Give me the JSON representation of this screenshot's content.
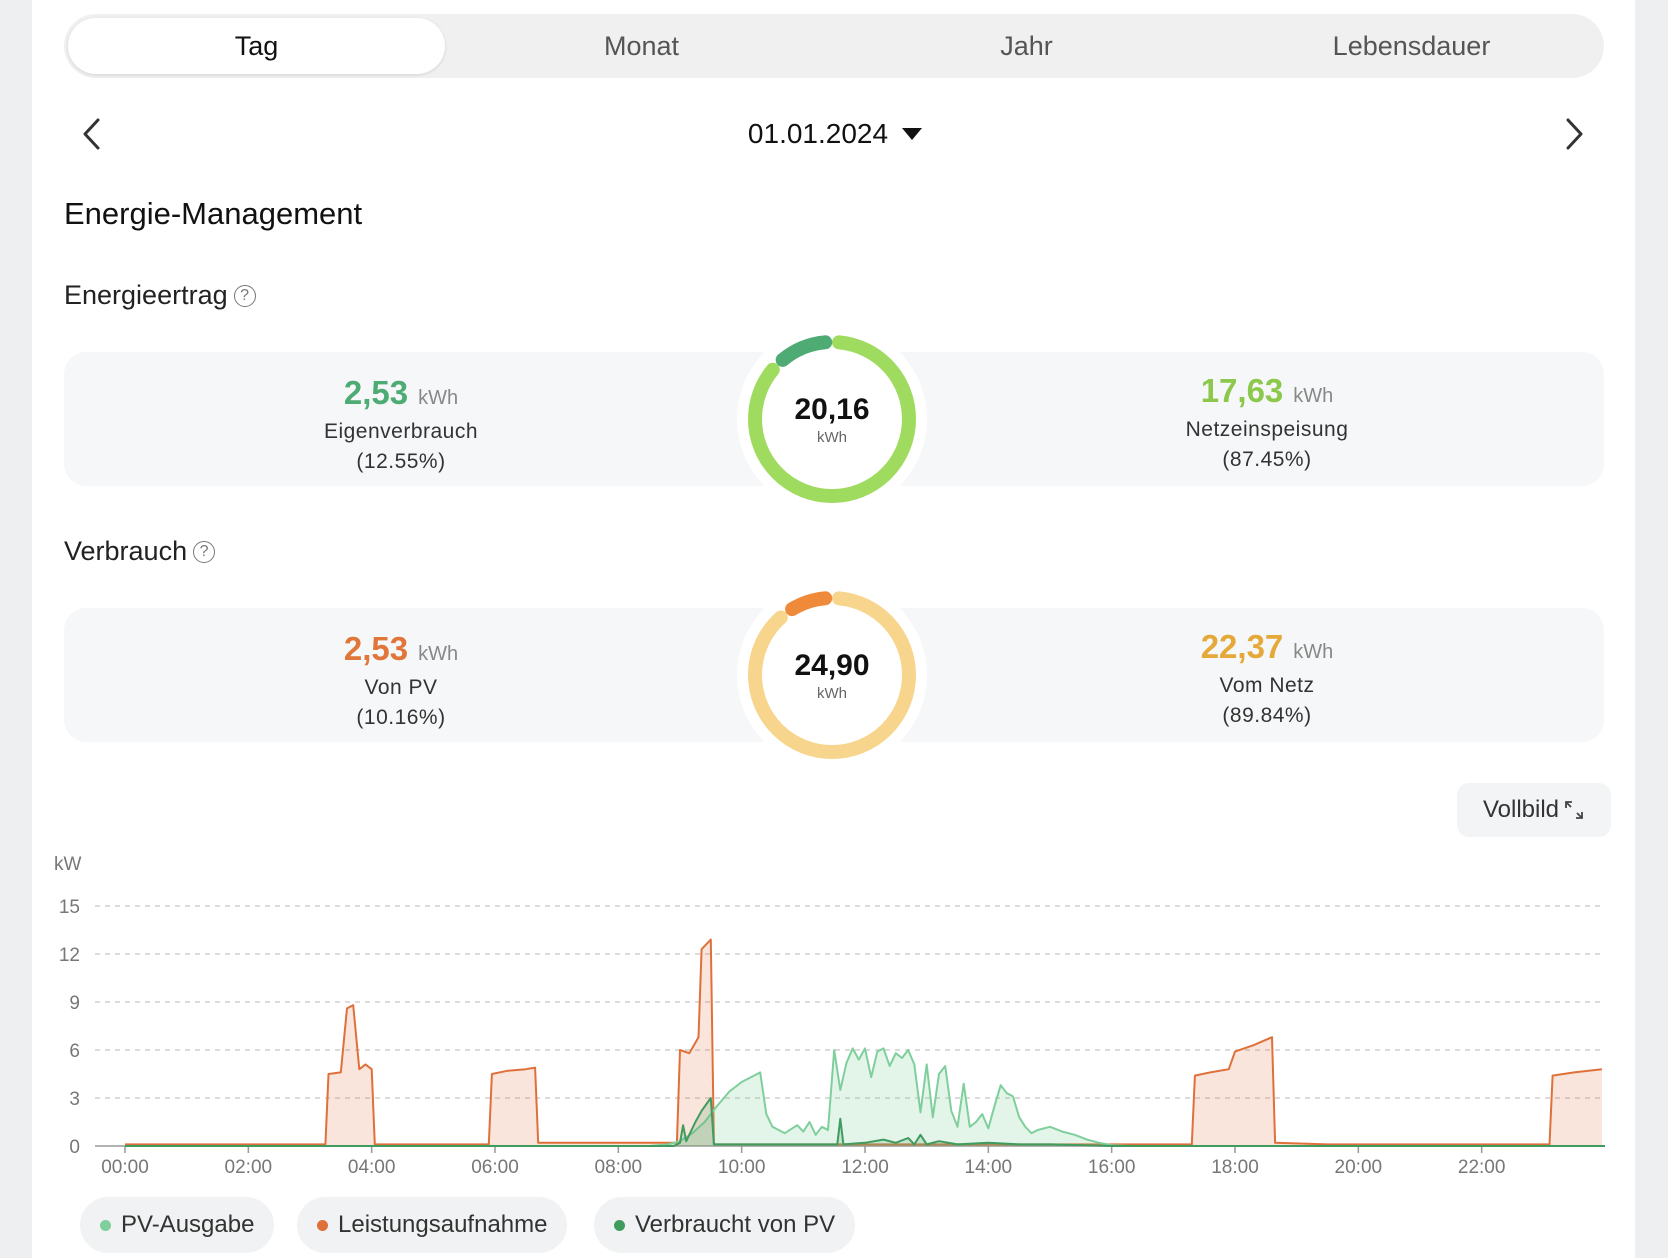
{
  "tabs": [
    {
      "label": "Tag",
      "active": true
    },
    {
      "label": "Monat",
      "active": false
    },
    {
      "label": "Jahr",
      "active": false
    },
    {
      "label": "Lebensdauer",
      "active": false
    }
  ],
  "date": "01.01.2024",
  "title": "Energie-Management",
  "energieertrag": {
    "heading": "Energieertrag",
    "left": {
      "value": "2,53",
      "unit": "kWh",
      "label": "Eigenverbrauch",
      "percent": "(12.55%)"
    },
    "total": {
      "value": "20,16",
      "unit": "kWh"
    },
    "right": {
      "value": "17,63",
      "unit": "kWh",
      "label": "Netzeinspeisung",
      "percent": "(87.45%)"
    },
    "colors": {
      "primary": "#4eab73",
      "secondary": "#9edb5e"
    },
    "share_primary": 0.1255
  },
  "verbrauch": {
    "heading": "Verbrauch",
    "left": {
      "value": "2,53",
      "unit": "kWh",
      "label": "Von PV",
      "percent": "(10.16%)"
    },
    "total": {
      "value": "24,90",
      "unit": "kWh"
    },
    "right": {
      "value": "22,37",
      "unit": "kWh",
      "label": "Vom Netz",
      "percent": "(89.84%)"
    },
    "colors": {
      "primary": "#ee8a3a",
      "secondary": "#f7d58d"
    },
    "share_primary": 0.1016
  },
  "fullscreen_label": "Vollbild",
  "help_icon": "?",
  "chart_data": {
    "type": "area",
    "ylabel": "kW",
    "ylim": [
      0,
      15
    ],
    "yticks": [
      0,
      3,
      6,
      9,
      12,
      15
    ],
    "xticks": [
      "00:00",
      "02:00",
      "04:00",
      "06:00",
      "08:00",
      "10:00",
      "12:00",
      "14:00",
      "16:00",
      "18:00",
      "20:00",
      "22:00"
    ],
    "grid": true,
    "legend_position": "bottom",
    "series": [
      {
        "name": "PV-Ausgabe",
        "color": "#7fcf9c",
        "points": [
          [
            0,
            0
          ],
          [
            8.5,
            0
          ],
          [
            8.8,
            0.1
          ],
          [
            9.0,
            0.3
          ],
          [
            9.2,
            0.8
          ],
          [
            9.4,
            1.5
          ],
          [
            9.6,
            2.5
          ],
          [
            9.8,
            3.4
          ],
          [
            10.0,
            4.0
          ],
          [
            10.2,
            4.4
          ],
          [
            10.3,
            4.6
          ],
          [
            10.4,
            2.0
          ],
          [
            10.5,
            1.2
          ],
          [
            10.7,
            0.8
          ],
          [
            10.9,
            1.3
          ],
          [
            11.0,
            0.9
          ],
          [
            11.1,
            1.5
          ],
          [
            11.2,
            0.7
          ],
          [
            11.3,
            1.2
          ],
          [
            11.4,
            1.0
          ],
          [
            11.5,
            6.0
          ],
          [
            11.6,
            3.5
          ],
          [
            11.7,
            5.2
          ],
          [
            11.8,
            6.1
          ],
          [
            11.9,
            5.4
          ],
          [
            12.0,
            6.1
          ],
          [
            12.1,
            4.3
          ],
          [
            12.2,
            5.9
          ],
          [
            12.3,
            6.1
          ],
          [
            12.4,
            5.0
          ],
          [
            12.5,
            5.8
          ],
          [
            12.6,
            5.5
          ],
          [
            12.7,
            6.0
          ],
          [
            12.8,
            5.1
          ],
          [
            12.9,
            2.1
          ],
          [
            13.0,
            5.1
          ],
          [
            13.1,
            1.8
          ],
          [
            13.2,
            4.5
          ],
          [
            13.3,
            5.0
          ],
          [
            13.4,
            2.2
          ],
          [
            13.5,
            1.2
          ],
          [
            13.6,
            3.9
          ],
          [
            13.7,
            1.2
          ],
          [
            13.8,
            1.5
          ],
          [
            13.9,
            2.0
          ],
          [
            14.0,
            1.1
          ],
          [
            14.1,
            2.5
          ],
          [
            14.2,
            3.8
          ],
          [
            14.3,
            3.3
          ],
          [
            14.4,
            3.1
          ],
          [
            14.5,
            1.8
          ],
          [
            14.6,
            1.2
          ],
          [
            14.7,
            0.8
          ],
          [
            14.8,
            1.0
          ],
          [
            15.0,
            1.2
          ],
          [
            15.2,
            0.9
          ],
          [
            15.4,
            0.7
          ],
          [
            15.6,
            0.4
          ],
          [
            15.8,
            0.2
          ],
          [
            16.0,
            0.05
          ],
          [
            16.3,
            0
          ],
          [
            24,
            0
          ]
        ]
      },
      {
        "name": "Leistungsaufnahme",
        "color": "#e0703a",
        "points": [
          [
            0,
            0.1
          ],
          [
            1.0,
            0.1
          ],
          [
            2.0,
            0.1
          ],
          [
            3.0,
            0.1
          ],
          [
            3.25,
            0.1
          ],
          [
            3.3,
            4.5
          ],
          [
            3.5,
            4.6
          ],
          [
            3.6,
            8.6
          ],
          [
            3.7,
            8.8
          ],
          [
            3.8,
            4.8
          ],
          [
            3.9,
            5.1
          ],
          [
            4.0,
            4.8
          ],
          [
            4.05,
            0.1
          ],
          [
            5.0,
            0.1
          ],
          [
            5.9,
            0.1
          ],
          [
            5.95,
            4.5
          ],
          [
            6.2,
            4.7
          ],
          [
            6.5,
            4.8
          ],
          [
            6.65,
            4.9
          ],
          [
            6.7,
            0.2
          ],
          [
            7.5,
            0.2
          ],
          [
            8.5,
            0.2
          ],
          [
            8.95,
            0.2
          ],
          [
            9.0,
            6.0
          ],
          [
            9.15,
            5.8
          ],
          [
            9.3,
            6.8
          ],
          [
            9.35,
            12.3
          ],
          [
            9.5,
            12.9
          ],
          [
            9.55,
            0.1
          ],
          [
            10.5,
            0.1
          ],
          [
            12.0,
            0.1
          ],
          [
            14.0,
            0.1
          ],
          [
            16.0,
            0.1
          ],
          [
            17.3,
            0.1
          ],
          [
            17.35,
            4.4
          ],
          [
            17.6,
            4.6
          ],
          [
            17.9,
            4.8
          ],
          [
            18.0,
            5.9
          ],
          [
            18.3,
            6.3
          ],
          [
            18.6,
            6.8
          ],
          [
            18.65,
            0.2
          ],
          [
            19.5,
            0.1
          ],
          [
            21.0,
            0.1
          ],
          [
            23.1,
            0.1
          ],
          [
            23.15,
            4.4
          ],
          [
            23.5,
            4.6
          ],
          [
            23.95,
            4.8
          ]
        ]
      },
      {
        "name": "Verbraucht von PV",
        "color": "#3f9b5e",
        "points": [
          [
            0,
            0
          ],
          [
            8.9,
            0
          ],
          [
            9.0,
            0.2
          ],
          [
            9.05,
            1.3
          ],
          [
            9.1,
            0.3
          ],
          [
            9.25,
            1.5
          ],
          [
            9.35,
            2.2
          ],
          [
            9.5,
            3.0
          ],
          [
            9.55,
            0.1
          ],
          [
            10.0,
            0.1
          ],
          [
            11.0,
            0.1
          ],
          [
            11.55,
            0.1
          ],
          [
            11.6,
            1.7
          ],
          [
            11.65,
            0.1
          ],
          [
            12.0,
            0.2
          ],
          [
            12.3,
            0.4
          ],
          [
            12.5,
            0.2
          ],
          [
            12.7,
            0.5
          ],
          [
            12.8,
            0.1
          ],
          [
            12.9,
            0.7
          ],
          [
            13.0,
            0.1
          ],
          [
            13.2,
            0.3
          ],
          [
            13.5,
            0.1
          ],
          [
            14.0,
            0.2
          ],
          [
            14.5,
            0.1
          ],
          [
            15.0,
            0.1
          ],
          [
            16.0,
            0
          ],
          [
            24,
            0
          ]
        ]
      }
    ]
  }
}
